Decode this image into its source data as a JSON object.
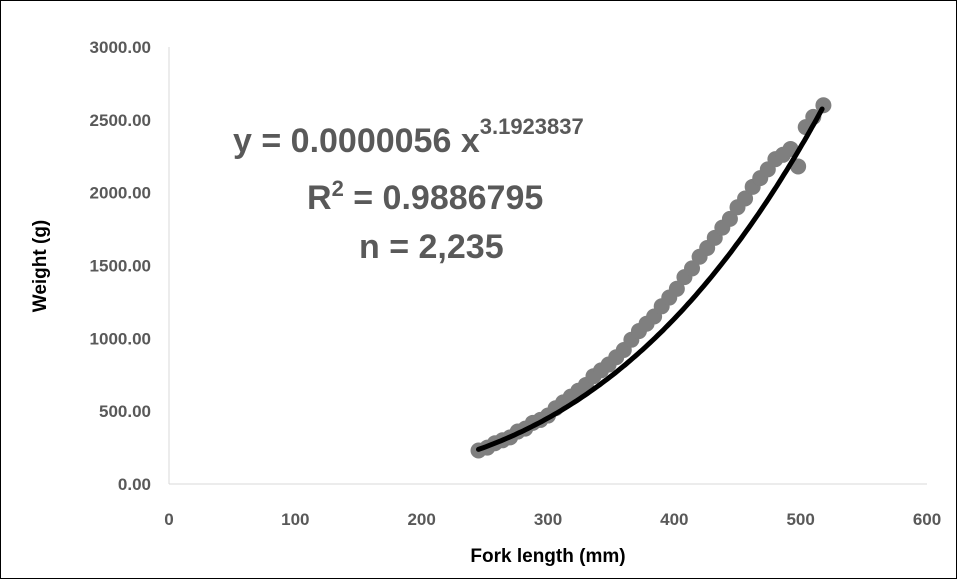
{
  "chart_data": {
    "type": "scatter",
    "title": "",
    "xlabel": "Fork length (mm)",
    "ylabel": "Weight (g)",
    "xlim": [
      0,
      600
    ],
    "ylim": [
      0,
      3000
    ],
    "x_ticks": [
      "0",
      "100",
      "200",
      "300",
      "400",
      "500",
      "600"
    ],
    "y_ticks": [
      "0.00",
      "500.00",
      "1000.00",
      "1500.00",
      "2000.00",
      "2500.00",
      "3000.00"
    ],
    "grid": false,
    "legend": "none",
    "point_color": "#7f7f7f",
    "trendline_color": "#000000",
    "trendline": {
      "type": "power",
      "a": 5.6e-06,
      "b": 3.1923837,
      "x_range": [
        245,
        518
      ]
    },
    "points": {
      "x": [
        245,
        252,
        258,
        264,
        270,
        276,
        282,
        288,
        294,
        300,
        306,
        312,
        318,
        324,
        330,
        336,
        342,
        348,
        354,
        360,
        366,
        372,
        378,
        384,
        390,
        396,
        402,
        408,
        414,
        420,
        426,
        432,
        438,
        444,
        450,
        456,
        462,
        468,
        474,
        480,
        486,
        492,
        498,
        504,
        510,
        518
      ],
      "y": [
        230,
        250,
        280,
        300,
        320,
        360,
        380,
        420,
        440,
        470,
        520,
        560,
        600,
        640,
        680,
        740,
        780,
        820,
        870,
        920,
        990,
        1050,
        1100,
        1150,
        1220,
        1280,
        1340,
        1420,
        1480,
        1560,
        1620,
        1690,
        1760,
        1820,
        1900,
        1960,
        2040,
        2100,
        2160,
        2230,
        2260,
        2300,
        2180,
        2450,
        2520,
        2600
      ]
    },
    "annotations": {
      "equation_prefix": "y = 0.0000056 x",
      "equation_exponent": "3.1923837",
      "r_squared_label": "R",
      "r_squared_sup": "2",
      "r_squared_value": " = 0.9886795",
      "n_label": "n = 2,235"
    }
  }
}
